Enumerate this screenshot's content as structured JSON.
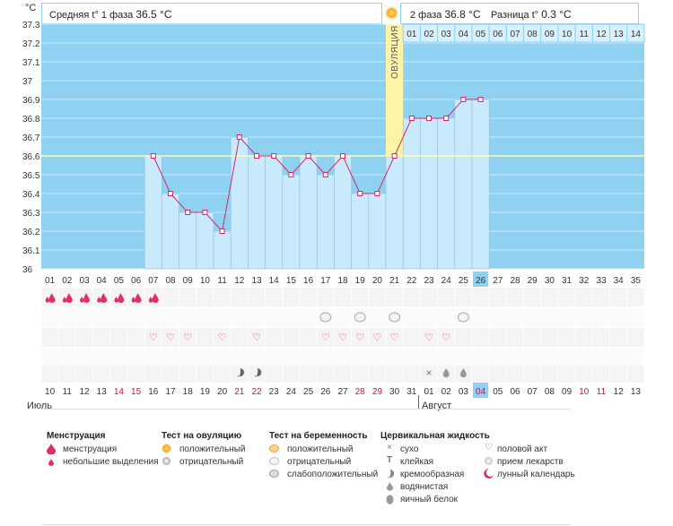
{
  "header": {
    "unit": "°C",
    "phase1_label": "Средняя t° 1 фаза",
    "phase1_value": "36.5 °C",
    "phase2_label": "2 фаза",
    "phase2_value": "36.8 °C",
    "diff_label": "Разница t°",
    "diff_value": "0.3 °C"
  },
  "chart_data": {
    "type": "line",
    "title": "",
    "ylabel": "°C",
    "ylim": [
      36,
      37.3
    ],
    "yticks": [
      "37.3",
      "37.2",
      "37.1",
      "37",
      "36.9",
      "36.8",
      "36.7",
      "36.6",
      "36.5",
      "36.4",
      "36.3",
      "36.2",
      "36.1",
      "36"
    ],
    "days": [
      "01",
      "02",
      "03",
      "04",
      "05",
      "06",
      "07",
      "08",
      "09",
      "10",
      "11",
      "12",
      "13",
      "14",
      "15",
      "16",
      "17",
      "18",
      "19",
      "20",
      "21",
      "22",
      "23",
      "24",
      "25",
      "26",
      "27",
      "28",
      "29",
      "30",
      "31",
      "32",
      "33",
      "34",
      "35"
    ],
    "values": [
      null,
      null,
      null,
      null,
      null,
      null,
      36.6,
      36.4,
      36.3,
      36.3,
      36.2,
      36.7,
      36.6,
      36.6,
      36.5,
      36.6,
      36.5,
      36.6,
      36.4,
      36.4,
      36.6,
      36.8,
      36.8,
      36.8,
      36.9,
      36.9,
      null,
      null,
      null,
      null,
      null,
      null,
      null,
      null,
      null
    ],
    "coverline": 36.6,
    "ovulation_day": 21,
    "ovulation_label": "ОВУЛЯЦИЯ",
    "current_day": 26,
    "phase2_days": [
      "01",
      "02",
      "03",
      "04",
      "05",
      "06",
      "07",
      "08",
      "09",
      "10",
      "11",
      "12",
      "13",
      "14"
    ],
    "calendar_dates": [
      "10",
      "11",
      "12",
      "13",
      "14",
      "15",
      "16",
      "17",
      "18",
      "19",
      "20",
      "21",
      "22",
      "23",
      "24",
      "25",
      "26",
      "27",
      "28",
      "29",
      "30",
      "31",
      "01",
      "02",
      "03",
      "04",
      "05",
      "06",
      "07",
      "08",
      "09",
      "10",
      "11",
      "12",
      "13"
    ],
    "weekend_days": [
      4,
      5,
      11,
      12,
      18,
      19,
      25,
      31,
      32
    ],
    "current_date_index": 26,
    "month_left": "Июль",
    "month_right": "Август",
    "month_split_index": 22
  },
  "symbols": {
    "menstruation_days": [
      1,
      2,
      3,
      4,
      5,
      6,
      7
    ],
    "pregnancy_test_days": [
      17,
      19,
      21,
      25
    ],
    "intercourse_days": [
      7,
      8,
      9,
      11,
      13,
      17,
      18,
      19,
      20,
      21,
      23,
      24
    ],
    "cervical_creamy_days": [
      12,
      13
    ],
    "cervical_dry_days": [
      23
    ],
    "cervical_watery_days": [
      24,
      25
    ]
  },
  "legend": {
    "menstruation": {
      "title": "Менструация",
      "items": [
        "менструация",
        "небольшие выделения"
      ]
    },
    "ovulation_test": {
      "title": "Тест на овуляцию",
      "items": [
        "положительный",
        "отрицательный"
      ]
    },
    "pregnancy_test": {
      "title": "Тест на беременность",
      "items": [
        "положительный",
        "отрицательный",
        "слабоположительный"
      ]
    },
    "cervical": {
      "title": "Цервикальная жидкость",
      "items": [
        "сухо",
        "клейкая",
        "кремообразная",
        "водянистая",
        "яичный белок"
      ]
    },
    "other": {
      "items": [
        "половой акт",
        "прием лекарств",
        "лунный календарь"
      ]
    }
  },
  "colors": {
    "plot_bg": "#8ed1f1",
    "bar_fill": "#c9eafc",
    "bar_stroke": "#8ebfdc",
    "line": "#d6296b",
    "coverline": "#fffcb0",
    "ovulation_band": "#fff3a6",
    "today_cell": "#8ed1f1",
    "weekend_text": "#d0104b"
  }
}
